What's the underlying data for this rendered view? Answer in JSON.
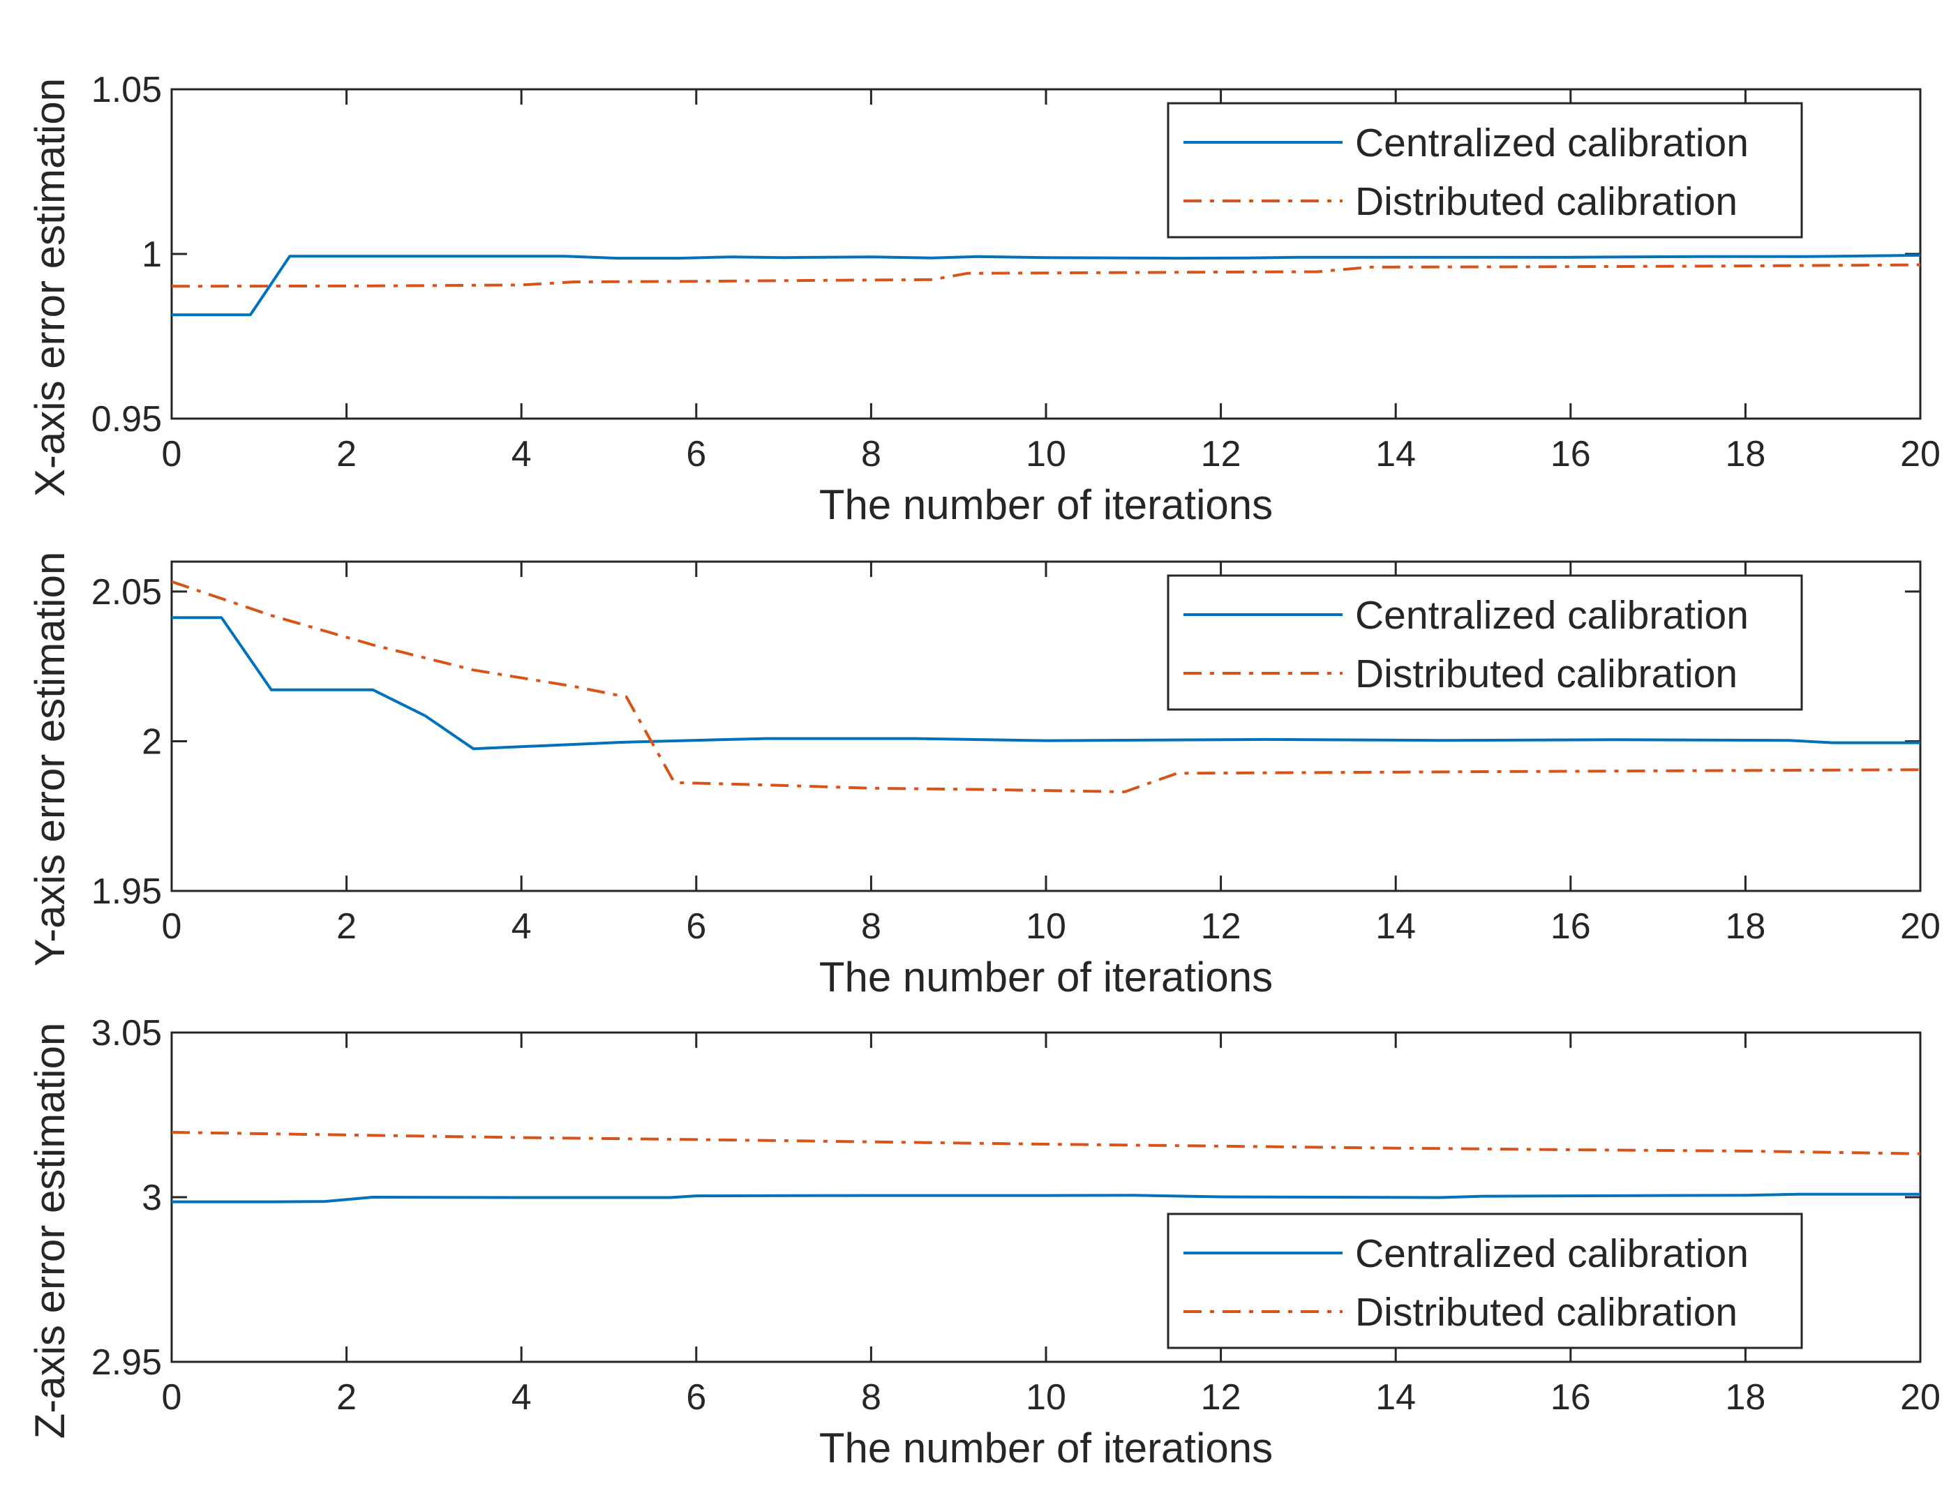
{
  "chart_data": [
    {
      "type": "line",
      "xlabel": "The number of iterations",
      "ylabel": "X-axis error estimation",
      "xlim": [
        0,
        20
      ],
      "ylim": [
        0.95,
        1.05
      ],
      "xticks": [
        0,
        2,
        4,
        6,
        8,
        10,
        12,
        14,
        16,
        18,
        20
      ],
      "xtick_labels": [
        "0",
        "2",
        "4",
        "6",
        "8",
        "10",
        "12",
        "14",
        "16",
        "18",
        "20"
      ],
      "yticks": [
        0.95,
        1,
        1.05
      ],
      "ytick_labels": [
        "0.95",
        "1",
        "1.05"
      ],
      "legend_position": "top-right",
      "series": [
        {
          "name": "Centralized calibration",
          "color": "#0072BD",
          "style": "solid",
          "x": [
            0,
            0.9,
            1.35,
            4.5,
            5.1,
            5.8,
            6.4,
            7.0,
            8.0,
            8.7,
            9.2,
            10.0,
            11.5,
            12.3,
            12.9,
            14.5,
            16.0,
            17.5,
            18.7,
            20
          ],
          "y": [
            0.9815,
            0.9815,
            0.9993,
            0.9993,
            0.9987,
            0.9987,
            0.9991,
            0.9989,
            0.9991,
            0.9988,
            0.9992,
            0.9989,
            0.9987,
            0.9988,
            0.999,
            0.999,
            0.999,
            0.9992,
            0.9992,
            0.9996
          ]
        },
        {
          "name": "Distributed calibration",
          "color": "#D95319",
          "style": "dashdot",
          "x": [
            0,
            2.3,
            4.0,
            4.6,
            6.0,
            7.5,
            8.7,
            9.1,
            10.5,
            12.0,
            13.1,
            13.7,
            15.5,
            17.5,
            20
          ],
          "y": [
            0.9902,
            0.9903,
            0.9906,
            0.9915,
            0.9917,
            0.992,
            0.9922,
            0.9941,
            0.9943,
            0.9945,
            0.9946,
            0.996,
            0.9961,
            0.9963,
            0.9967
          ]
        }
      ]
    },
    {
      "type": "line",
      "xlabel": "The number of iterations",
      "ylabel": "Y-axis error estimation",
      "xlim": [
        0,
        20
      ],
      "ylim": [
        1.95,
        2.06
      ],
      "xticks": [
        0,
        2,
        4,
        6,
        8,
        10,
        12,
        14,
        16,
        18,
        20
      ],
      "xtick_labels": [
        "0",
        "2",
        "4",
        "6",
        "8",
        "10",
        "12",
        "14",
        "16",
        "18",
        "20"
      ],
      "yticks": [
        1.95,
        2,
        2.05
      ],
      "ytick_labels": [
        "1.95",
        "2",
        "2.05"
      ],
      "legend_position": "top-right",
      "series": [
        {
          "name": "Centralized calibration",
          "color": "#0072BD",
          "style": "solid",
          "x": [
            0,
            0.57,
            1.14,
            2.3,
            2.9,
            3.45,
            5.2,
            6.8,
            8.5,
            10.0,
            12.5,
            14.5,
            16.5,
            18.5,
            19.0,
            20
          ],
          "y": [
            2.0413,
            2.0413,
            2.0172,
            2.0172,
            2.0085,
            1.9975,
            1.9997,
            2.0009,
            2.0009,
            2.0002,
            2.0006,
            2.0003,
            2.0005,
            2.0003,
            1.9995,
            1.9995
          ]
        },
        {
          "name": "Distributed calibration",
          "color": "#D95319",
          "style": "dashdot",
          "x": [
            0,
            1.14,
            2.3,
            3.45,
            4.6,
            5.2,
            5.75,
            6.9,
            8.0,
            9.2,
            10.3,
            10.9,
            11.5,
            14.0,
            17.0,
            20
          ],
          "y": [
            2.0533,
            2.042,
            2.0322,
            2.0238,
            2.0183,
            2.0148,
            1.9862,
            1.9853,
            1.9843,
            1.9839,
            1.9834,
            1.9831,
            1.9893,
            1.9897,
            1.9901,
            1.9905
          ]
        }
      ]
    },
    {
      "type": "line",
      "xlabel": "The number of iterations",
      "ylabel": "Z-axis error estimation",
      "xlim": [
        0,
        20
      ],
      "ylim": [
        2.95,
        3.05
      ],
      "xticks": [
        0,
        2,
        4,
        6,
        8,
        10,
        12,
        14,
        16,
        18,
        20
      ],
      "xtick_labels": [
        "0",
        "2",
        "4",
        "6",
        "8",
        "10",
        "12",
        "14",
        "16",
        "18",
        "20"
      ],
      "yticks": [
        2.95,
        3,
        3.05
      ],
      "ytick_labels": [
        "2.95",
        "3",
        "3.05"
      ],
      "legend_position": "bottom-right",
      "series": [
        {
          "name": "Centralized calibration",
          "color": "#0072BD",
          "style": "solid",
          "x": [
            0,
            1.15,
            1.75,
            2.3,
            4.0,
            5.7,
            6.0,
            8.0,
            10.0,
            11.0,
            12.0,
            14.5,
            15.0,
            16.0,
            18.0,
            18.6,
            20
          ],
          "y": [
            2.9986,
            2.9986,
            2.9987,
            3.0,
            2.9999,
            2.9999,
            3.0004,
            3.0005,
            3.0005,
            3.0006,
            3.0001,
            2.9999,
            3.0003,
            3.0004,
            3.0006,
            3.0009,
            3.0009
          ]
        },
        {
          "name": "Distributed calibration",
          "color": "#D95319",
          "style": "dashdot",
          "x": [
            0,
            2.0,
            4.0,
            6.0,
            8.0,
            10.0,
            12.0,
            14.0,
            16.0,
            18.0,
            20
          ],
          "y": [
            3.0197,
            3.0189,
            3.0181,
            3.0175,
            3.0168,
            3.0161,
            3.0155,
            3.0149,
            3.0144,
            3.014,
            3.0132
          ]
        }
      ]
    }
  ]
}
